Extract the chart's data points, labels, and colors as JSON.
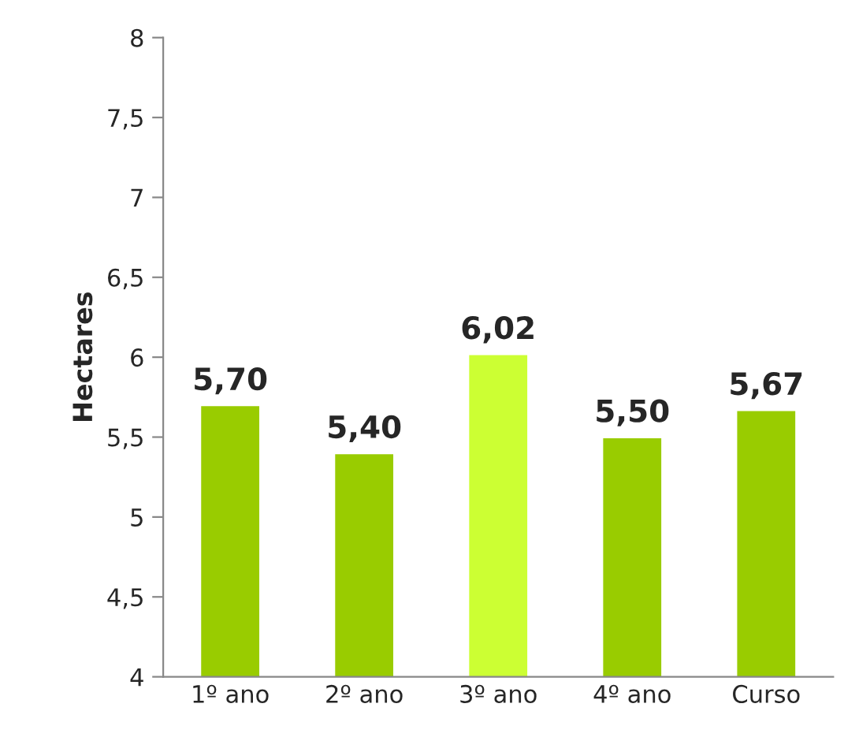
{
  "chart_data": {
    "type": "bar",
    "ylabel": "Hectares",
    "categories": [
      "1º ano",
      "2º ano",
      "3º ano",
      "4º ano",
      "Curso"
    ],
    "values": [
      5.7,
      5.4,
      6.02,
      5.5,
      5.67
    ],
    "colors": [
      "#99cc00",
      "#99cc00",
      "#ccff33",
      "#99cc00",
      "#99cc00"
    ],
    "value_labels": [
      "5,70",
      "5,40",
      "6,02",
      "5,50",
      "5,67"
    ],
    "ylim": [
      4,
      8
    ],
    "yticks": [
      4,
      {
        "value": 4.5,
        "label": "4,5"
      },
      5,
      {
        "value": 5.5,
        "label": "5,5"
      },
      6,
      {
        "value": 6.5,
        "label": "6,5"
      },
      7,
      {
        "value": 7.5,
        "label": "7,5"
      },
      8
    ],
    "grid": false
  }
}
